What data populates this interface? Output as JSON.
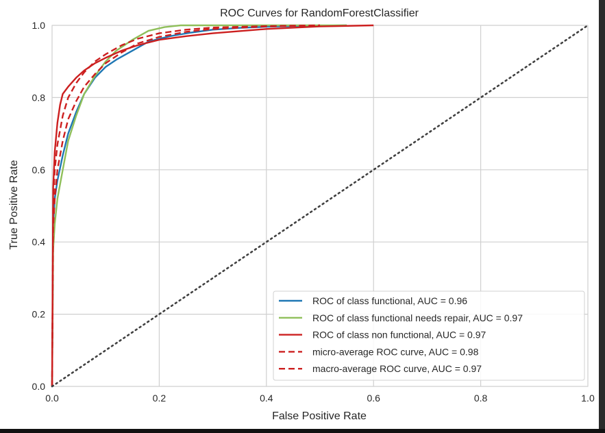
{
  "chart_data": {
    "type": "line",
    "title": "ROC Curves for RandomForestClassifier",
    "xlabel": "False Positive Rate",
    "ylabel": "True Positive Rate",
    "xlim": [
      0,
      1
    ],
    "ylim": [
      0,
      1
    ],
    "xticks": [
      "0.0",
      "0.2",
      "0.4",
      "0.6",
      "0.8",
      "1.0"
    ],
    "yticks": [
      "0.0",
      "0.2",
      "0.4",
      "0.6",
      "0.8",
      "1.0"
    ],
    "grid": true,
    "legend_position": "lower-right",
    "series": [
      {
        "name": "ROC of class functional, AUC = 0.96",
        "color": "#1f77b4",
        "style": "solid",
        "x": [
          0,
          0.002,
          0.005,
          0.01,
          0.02,
          0.03,
          0.045,
          0.06,
          0.08,
          0.1,
          0.12,
          0.15,
          0.18,
          0.22,
          0.26,
          0.3,
          0.35,
          0.4,
          0.45,
          0.5,
          0.55
        ],
        "y": [
          0,
          0.45,
          0.52,
          0.57,
          0.64,
          0.7,
          0.76,
          0.81,
          0.855,
          0.885,
          0.905,
          0.93,
          0.955,
          0.97,
          0.98,
          0.988,
          0.993,
          0.996,
          0.998,
          0.999,
          1.0
        ]
      },
      {
        "name": "ROC of class functional needs repair, AUC = 0.97",
        "color": "#8fbf5a",
        "style": "solid",
        "x": [
          0,
          0.002,
          0.005,
          0.01,
          0.02,
          0.03,
          0.045,
          0.06,
          0.08,
          0.1,
          0.12,
          0.15,
          0.18,
          0.21,
          0.24,
          0.3,
          0.4,
          0.55
        ],
        "y": [
          0,
          0.38,
          0.45,
          0.52,
          0.6,
          0.68,
          0.75,
          0.81,
          0.86,
          0.9,
          0.93,
          0.96,
          0.985,
          0.995,
          1.0,
          1.0,
          1.0,
          1.0
        ]
      },
      {
        "name": "ROC of class non functional, AUC = 0.97",
        "color": "#cc1f1f",
        "style": "solid",
        "x": [
          0,
          0.002,
          0.005,
          0.01,
          0.015,
          0.02,
          0.03,
          0.045,
          0.06,
          0.08,
          0.1,
          0.13,
          0.16,
          0.2,
          0.25,
          0.3,
          0.4,
          0.5,
          0.6
        ],
        "y": [
          0,
          0.55,
          0.65,
          0.73,
          0.78,
          0.81,
          0.83,
          0.855,
          0.875,
          0.895,
          0.91,
          0.93,
          0.945,
          0.96,
          0.97,
          0.978,
          0.99,
          0.997,
          1.0
        ]
      },
      {
        "name": "micro-average ROC curve, AUC = 0.98",
        "color": "#cc1f1f",
        "style": "dashed",
        "x": [
          0,
          0.002,
          0.005,
          0.01,
          0.02,
          0.03,
          0.045,
          0.06,
          0.08,
          0.1,
          0.13,
          0.16,
          0.2,
          0.25,
          0.3,
          0.4,
          0.5
        ],
        "y": [
          0,
          0.5,
          0.6,
          0.67,
          0.75,
          0.8,
          0.84,
          0.87,
          0.9,
          0.92,
          0.945,
          0.963,
          0.978,
          0.988,
          0.994,
          0.998,
          1.0
        ]
      },
      {
        "name": "macro-average ROC curve, AUC = 0.97",
        "color": "#cc1f1f",
        "style": "dashed",
        "x": [
          0,
          0.002,
          0.005,
          0.01,
          0.02,
          0.03,
          0.045,
          0.06,
          0.08,
          0.1,
          0.13,
          0.16,
          0.2,
          0.25,
          0.3,
          0.4,
          0.5
        ],
        "y": [
          0,
          0.44,
          0.52,
          0.6,
          0.68,
          0.74,
          0.79,
          0.83,
          0.865,
          0.895,
          0.925,
          0.95,
          0.968,
          0.982,
          0.99,
          0.997,
          1.0
        ]
      }
    ],
    "reference_line": {
      "x": [
        0,
        1
      ],
      "y": [
        0,
        1
      ],
      "color": "#404040",
      "style": "dotted"
    }
  }
}
